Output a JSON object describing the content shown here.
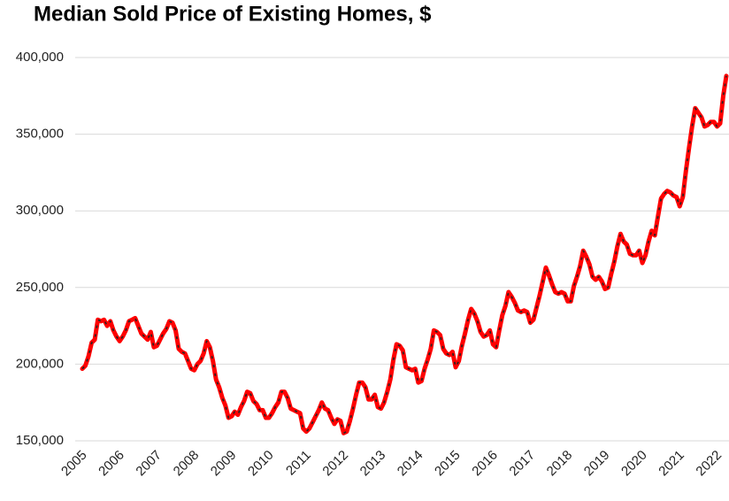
{
  "chart_data": {
    "type": "line",
    "title": "Median Sold Price of Existing Homes, $",
    "categories": [
      "2005",
      null,
      null,
      null,
      null,
      null,
      null,
      null,
      null,
      null,
      null,
      null,
      "2006",
      null,
      null,
      null,
      null,
      null,
      null,
      null,
      null,
      null,
      null,
      null,
      "2007",
      null,
      null,
      null,
      null,
      null,
      null,
      null,
      null,
      null,
      null,
      null,
      "2008",
      null,
      null,
      null,
      null,
      null,
      null,
      null,
      null,
      null,
      null,
      null,
      "2009",
      null,
      null,
      null,
      null,
      null,
      null,
      null,
      null,
      null,
      null,
      null,
      "2010",
      null,
      null,
      null,
      null,
      null,
      null,
      null,
      null,
      null,
      null,
      null,
      "2011",
      null,
      null,
      null,
      null,
      null,
      null,
      null,
      null,
      null,
      null,
      null,
      "2012",
      null,
      null,
      null,
      null,
      null,
      null,
      null,
      null,
      null,
      null,
      null,
      "2013",
      null,
      null,
      null,
      null,
      null,
      null,
      null,
      null,
      null,
      null,
      null,
      "2014",
      null,
      null,
      null,
      null,
      null,
      null,
      null,
      null,
      null,
      null,
      null,
      "2015",
      null,
      null,
      null,
      null,
      null,
      null,
      null,
      null,
      null,
      null,
      null,
      "2016",
      null,
      null,
      null,
      null,
      null,
      null,
      null,
      null,
      null,
      null,
      null,
      "2017",
      null,
      null,
      null,
      null,
      null,
      null,
      null,
      null,
      null,
      null,
      null,
      "2018",
      null,
      null,
      null,
      null,
      null,
      null,
      null,
      null,
      null,
      null,
      null,
      "2019",
      null,
      null,
      null,
      null,
      null,
      null,
      null,
      null,
      null,
      null,
      null,
      "2020",
      null,
      null,
      null,
      null,
      null,
      null,
      null,
      null,
      null,
      null,
      null,
      "2021",
      null,
      null,
      null,
      null,
      null,
      null,
      null,
      null,
      null,
      null,
      null,
      "2022",
      null,
      null,
      null
    ],
    "series": [
      {
        "color": "#ff0000",
        "values": [
          197000,
          199000,
          205000,
          214000,
          216000,
          229000,
          228000,
          229000,
          225000,
          228000,
          222000,
          218000,
          215000,
          218000,
          222000,
          228000,
          229000,
          230000,
          225000,
          220000,
          218000,
          216000,
          221000,
          211000,
          212000,
          216000,
          220000,
          223000,
          228000,
          227000,
          222000,
          210000,
          208000,
          207000,
          202000,
          197000,
          196000,
          200000,
          202000,
          207000,
          215000,
          211000,
          202000,
          190000,
          185000,
          178000,
          173000,
          165000,
          166000,
          169000,
          167000,
          172000,
          176000,
          182000,
          181000,
          176000,
          174000,
          170000,
          170000,
          165000,
          165000,
          168000,
          172000,
          175000,
          182000,
          182000,
          178000,
          171000,
          170000,
          169000,
          168000,
          158000,
          156000,
          158000,
          162000,
          166000,
          170000,
          175000,
          171000,
          170000,
          165000,
          161000,
          164000,
          163000,
          155000,
          156000,
          163000,
          171000,
          180000,
          188000,
          188000,
          185000,
          177000,
          177000,
          180000,
          172000,
          171000,
          175000,
          182000,
          190000,
          203000,
          213000,
          212000,
          209000,
          198000,
          197000,
          196000,
          197000,
          188000,
          189000,
          197000,
          203000,
          210000,
          222000,
          221000,
          219000,
          210000,
          207000,
          206000,
          208000,
          198000,
          202000,
          212000,
          220000,
          229000,
          236000,
          233000,
          228000,
          221000,
          218000,
          219000,
          222000,
          213000,
          211000,
          222000,
          232000,
          238000,
          247000,
          244000,
          240000,
          235000,
          234000,
          235000,
          234000,
          227000,
          229000,
          237000,
          245000,
          254000,
          263000,
          258000,
          252000,
          247000,
          246000,
          247000,
          246000,
          241000,
          241000,
          251000,
          257000,
          264000,
          274000,
          270000,
          265000,
          257000,
          255000,
          257000,
          254000,
          249000,
          250000,
          259000,
          267000,
          277000,
          285000,
          280000,
          278000,
          272000,
          271000,
          271000,
          274000,
          266000,
          271000,
          280000,
          287000,
          284000,
          296000,
          308000,
          311000,
          313000,
          312000,
          310000,
          309000,
          303000,
          309000,
          326000,
          341000,
          355000,
          367000,
          364000,
          361000,
          355000,
          356000,
          358000,
          358000,
          355000,
          357000,
          375000,
          388000
        ]
      }
    ],
    "ylim": [
      150000,
      400000
    ],
    "yticks": [
      {
        "value": 150000,
        "label": "150,000"
      },
      {
        "value": 200000,
        "label": "200,000"
      },
      {
        "value": 250000,
        "label": "250,000"
      },
      {
        "value": 300000,
        "label": "300,000"
      },
      {
        "value": 350000,
        "label": "350,000"
      },
      {
        "value": 400000,
        "label": "400,000"
      }
    ],
    "grid": true
  }
}
